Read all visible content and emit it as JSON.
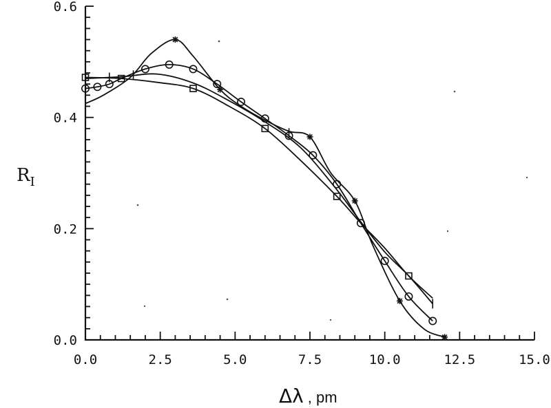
{
  "chart_data": {
    "type": "line",
    "title": "",
    "xlabel": "Δλ , pm",
    "xlabel_symbol": "Δλ",
    "xlabel_unit": ", pm",
    "ylabel": "R_I",
    "ylabel_main": "R",
    "ylabel_sub": "I",
    "xlim": [
      0,
      15
    ],
    "ylim": [
      0,
      0.6
    ],
    "x_ticks": [
      "0.0",
      "2.5",
      "5.0",
      "7.5",
      "10.0",
      "12.5",
      "15.0"
    ],
    "y_ticks": [
      "0.0",
      "0.2",
      "0.4",
      "0.6"
    ],
    "grid": false,
    "series": [
      {
        "marker": "star",
        "x": [
          0.0,
          0.6,
          1.5,
          2.2,
          3.0,
          3.6,
          4.5,
          5.2,
          6.0,
          6.8,
          7.5,
          8.2,
          9.0,
          9.6,
          10.5,
          11.3,
          12.0
        ],
        "y": [
          0.425,
          0.44,
          0.472,
          0.515,
          0.54,
          0.51,
          0.45,
          0.42,
          0.395,
          0.375,
          0.365,
          0.3,
          0.25,
          0.17,
          0.07,
          0.02,
          0.005
        ],
        "marker_x": [
          3.0,
          4.5,
          7.5,
          9.0,
          10.5,
          12.0
        ],
        "marker_y": [
          0.54,
          0.45,
          0.365,
          0.25,
          0.07,
          0.005
        ]
      },
      {
        "marker": "circle",
        "x": [
          0.0,
          0.4,
          0.8,
          1.2,
          2.0,
          2.8,
          3.6,
          4.4,
          5.2,
          6.0,
          6.8,
          7.6,
          8.4,
          9.2,
          10.0,
          10.8,
          11.6
        ],
        "y": [
          0.452,
          0.455,
          0.46,
          0.47,
          0.487,
          0.495,
          0.487,
          0.46,
          0.428,
          0.398,
          0.367,
          0.332,
          0.28,
          0.21,
          0.142,
          0.078,
          0.034
        ],
        "marker_x": [
          0.0,
          0.4,
          0.8,
          2.0,
          2.8,
          3.6,
          4.4,
          5.2,
          6.0,
          6.8,
          7.6,
          8.4,
          9.2,
          10.0,
          10.8,
          11.6
        ],
        "marker_y": [
          0.452,
          0.455,
          0.46,
          0.487,
          0.495,
          0.487,
          0.46,
          0.428,
          0.398,
          0.367,
          0.332,
          0.28,
          0.21,
          0.142,
          0.078,
          0.034
        ]
      },
      {
        "marker": "square",
        "x": [
          0.0,
          1.2,
          2.4,
          3.6,
          4.8,
          6.0,
          7.2,
          8.4,
          9.2,
          10.0,
          10.8,
          11.6
        ],
        "y": [
          0.472,
          0.47,
          0.463,
          0.452,
          0.42,
          0.38,
          0.322,
          0.258,
          0.21,
          0.165,
          0.115,
          0.075
        ],
        "marker_x": [
          0.0,
          1.2,
          3.6,
          6.0,
          8.4,
          10.8
        ],
        "marker_y": [
          0.472,
          0.47,
          0.452,
          0.38,
          0.258,
          0.115
        ]
      },
      {
        "marker": "bar",
        "x": [
          0.0,
          1.2,
          2.4,
          3.6,
          4.8,
          6.0,
          7.2,
          8.4,
          9.2,
          10.0,
          10.8,
          11.6
        ],
        "y": [
          0.47,
          0.473,
          0.478,
          0.462,
          0.43,
          0.392,
          0.345,
          0.27,
          0.212,
          0.158,
          0.115,
          0.065
        ],
        "marker_x": [
          0.0,
          0.8,
          1.6,
          6.8,
          11.6
        ],
        "marker_y": [
          0.47,
          0.472,
          0.476,
          0.372,
          0.065
        ]
      }
    ]
  }
}
